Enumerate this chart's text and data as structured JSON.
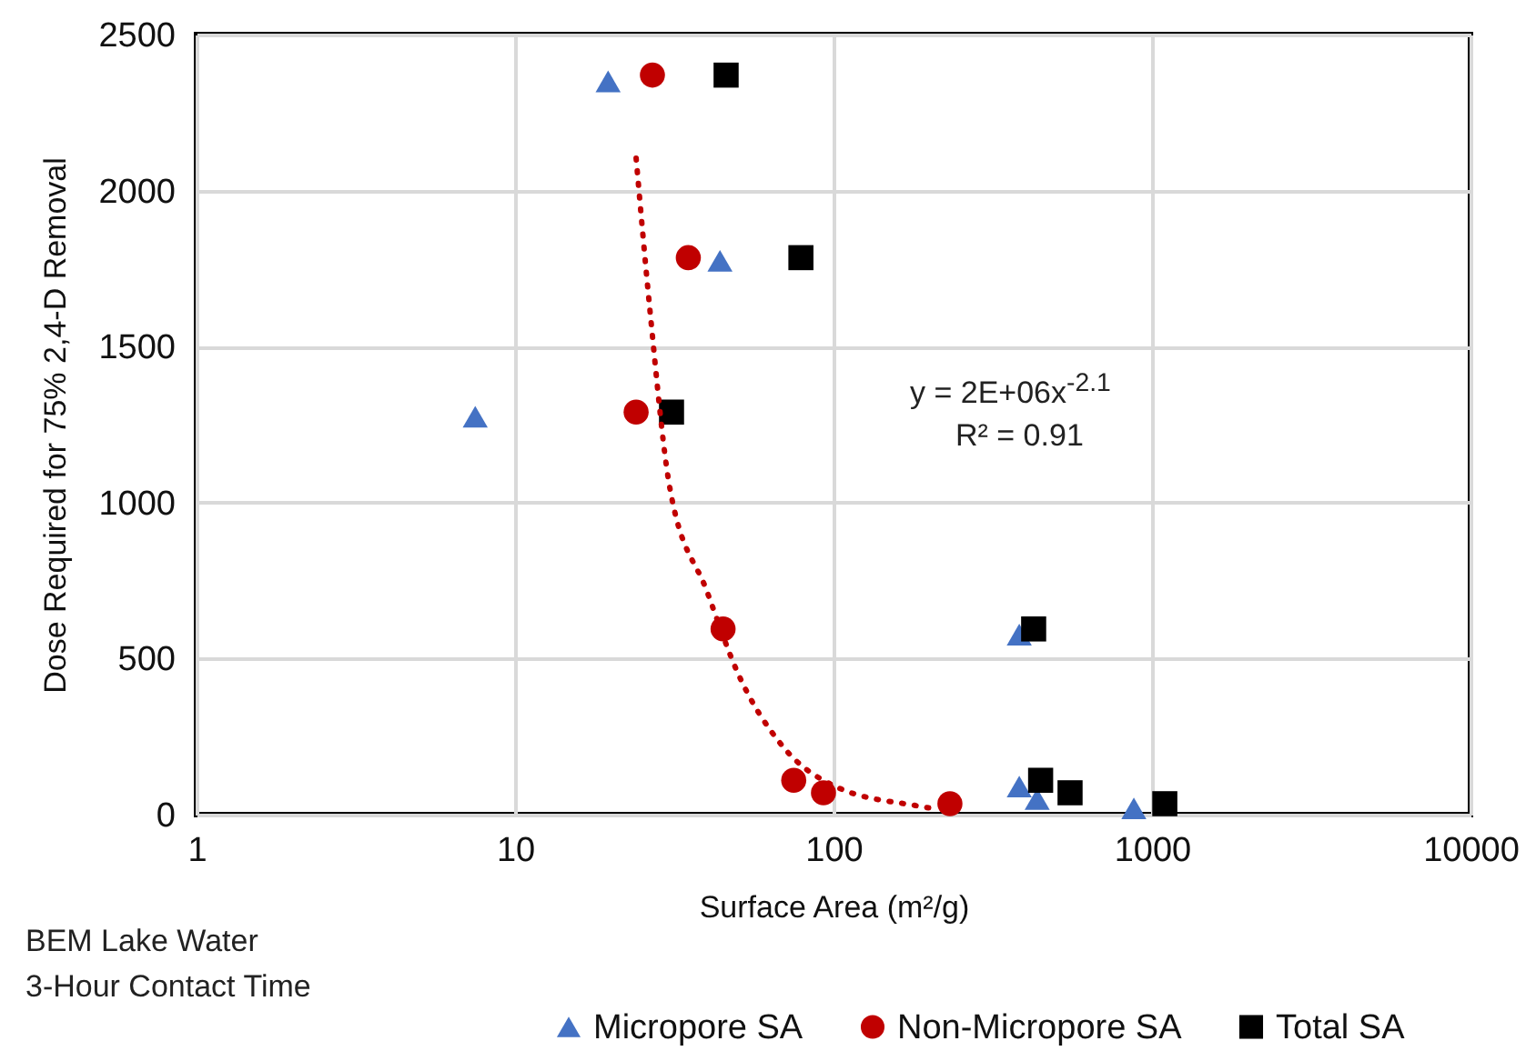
{
  "chart_data": {
    "type": "scatter",
    "xlabel": "Surface Area (m²/g)",
    "ylabel": "Dose Required for 75% 2,4-D Removal",
    "xlim": [
      1,
      10000
    ],
    "xticks": [
      1,
      10,
      100,
      1000,
      10000
    ],
    "ylim": [
      0,
      2500
    ],
    "yticks": [
      0,
      500,
      1000,
      1500,
      2000,
      2500
    ],
    "log": "x",
    "grid": true,
    "legend": "bottom",
    "annotations": [
      "y = 2E+06x$^{-2.1}$",
      "R² = 0.91",
      "BEM Lake Water",
      "3-Hour Contact Time"
    ],
    "series": [
      {
        "name": "Micropore SA",
        "color": "#4472c4",
        "marker": "triangle",
        "x": [
          19.6,
          44,
          7.5,
          383,
          383,
          436,
          877
        ],
        "values": [
          2350,
          1775,
          1275,
          577,
          90,
          50,
          20
        ]
      },
      {
        "name": "Non-Micropore SA",
        "color": "#c00000",
        "marker": "circle",
        "x": [
          27,
          35,
          24,
          45,
          75,
          93,
          232
        ],
        "values": [
          2370,
          1785,
          1290,
          595,
          110,
          70,
          35
        ]
      },
      {
        "name": "Total SA",
        "color": "#000000",
        "marker": "square",
        "x": [
          46,
          79,
          31,
          425,
          447,
          553,
          1097
        ],
        "values": [
          2370,
          1785,
          1290,
          595,
          110,
          70,
          35
        ]
      },
      {
        "type": "line",
        "color": "#c00000",
        "line_style": "dotted",
        "x": [
          24,
          26.5,
          30.6,
          40,
          50,
          69,
          103,
          181,
          204
        ],
        "values": [
          2104,
          1620,
          1049,
          717,
          455,
          221,
          87,
          29,
          20
        ]
      }
    ]
  }
}
